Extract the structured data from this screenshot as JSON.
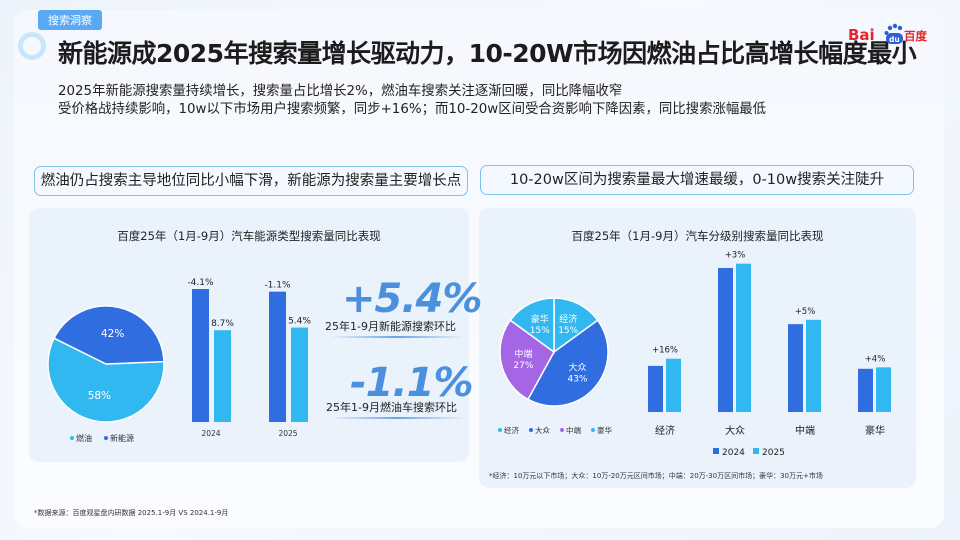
{
  "header": {
    "tag": "搜索洞察",
    "title": "新能源成2025年搜索量增长驱动力，10-20W市场因燃油占比高增长幅度最小",
    "subtitle_1": "2025年新能源搜索量持续增长，搜索量占比增长2%，燃油车搜索关注逐渐回暖，同比降幅收窄",
    "subtitle_2": "受价格战持续影响，10w以下市场用户搜索频繁，同步+16%；而10-20w区间受合资影响下降因素，同比搜索涨幅最低",
    "logo_text_1": "Bai",
    "logo_text_2": "du",
    "logo_text_3": "百度"
  },
  "left": {
    "pill": "燃油仍占搜索主导地位同比小幅下滑，新能源为搜索量主要增长点",
    "big_1": "+5.4%",
    "big_1_label": "25年1-9月新能源搜索环比",
    "big_2": "-1.1%",
    "big_2_label": "25年1-9月燃油车搜索环比"
  },
  "right": {
    "pill": "10-20w区间为搜索量最大增速最缓，0-10w搜索关注陡升",
    "note": "*经济：10万元以下市场；大众：10万-20万元区间市场；中端：20万-30万区间市场；豪华：30万元+市场"
  },
  "footer": {
    "source": "*数据来源：百度观星盘内研数据 2025.1-9月 VS 2024.1-9月"
  },
  "colors": {
    "dark_blue": "#2f6de1",
    "light_blue": "#32b8f0",
    "purple": "#a566e6",
    "accent": "#4a90dd"
  },
  "chart_data": [
    {
      "type": "pie",
      "title": "",
      "labels": [
        "燃油",
        "新能源"
      ],
      "values": [
        58,
        42
      ],
      "value_labels": [
        "58%",
        "42%"
      ],
      "legend_position": "bottom-left"
    },
    {
      "type": "bar",
      "title": "百度25年（1月-9月）汽车能源类型搜索量同比表现",
      "categories": [
        "2024",
        "2025"
      ],
      "series": [
        {
          "name": "燃油",
          "values": [
            -4.1,
            -1.1
          ],
          "labels": [
            "-4.1%",
            "-1.1%"
          ],
          "relative_height": [
            1.0,
            0.98
          ]
        },
        {
          "name": "新能源",
          "values": [
            8.7,
            5.4
          ],
          "labels": [
            "8.7%",
            "5.4%"
          ],
          "relative_height": [
            0.69,
            0.71
          ]
        }
      ]
    },
    {
      "type": "pie",
      "title": "",
      "labels": [
        "经济",
        "大众",
        "中端",
        "豪华"
      ],
      "values": [
        15,
        43,
        27,
        15
      ],
      "value_labels": [
        "15%",
        "43%",
        "27%",
        "15%"
      ],
      "legend_position": "bottom-left"
    },
    {
      "type": "bar",
      "title": "百度25年（1月-9月）汽车分级别搜索量同比表现",
      "categories": [
        "经济",
        "大众",
        "中端",
        "豪华"
      ],
      "series": [
        {
          "name": "2024",
          "values": [
            0.32,
            1.0,
            0.61,
            0.3
          ]
        },
        {
          "name": "2025",
          "values": [
            0.37,
            1.03,
            0.64,
            0.31
          ]
        }
      ],
      "growth_labels": [
        "+16%",
        "+3%",
        "+5%",
        "+4%"
      ],
      "legend_position": "bottom"
    }
  ]
}
